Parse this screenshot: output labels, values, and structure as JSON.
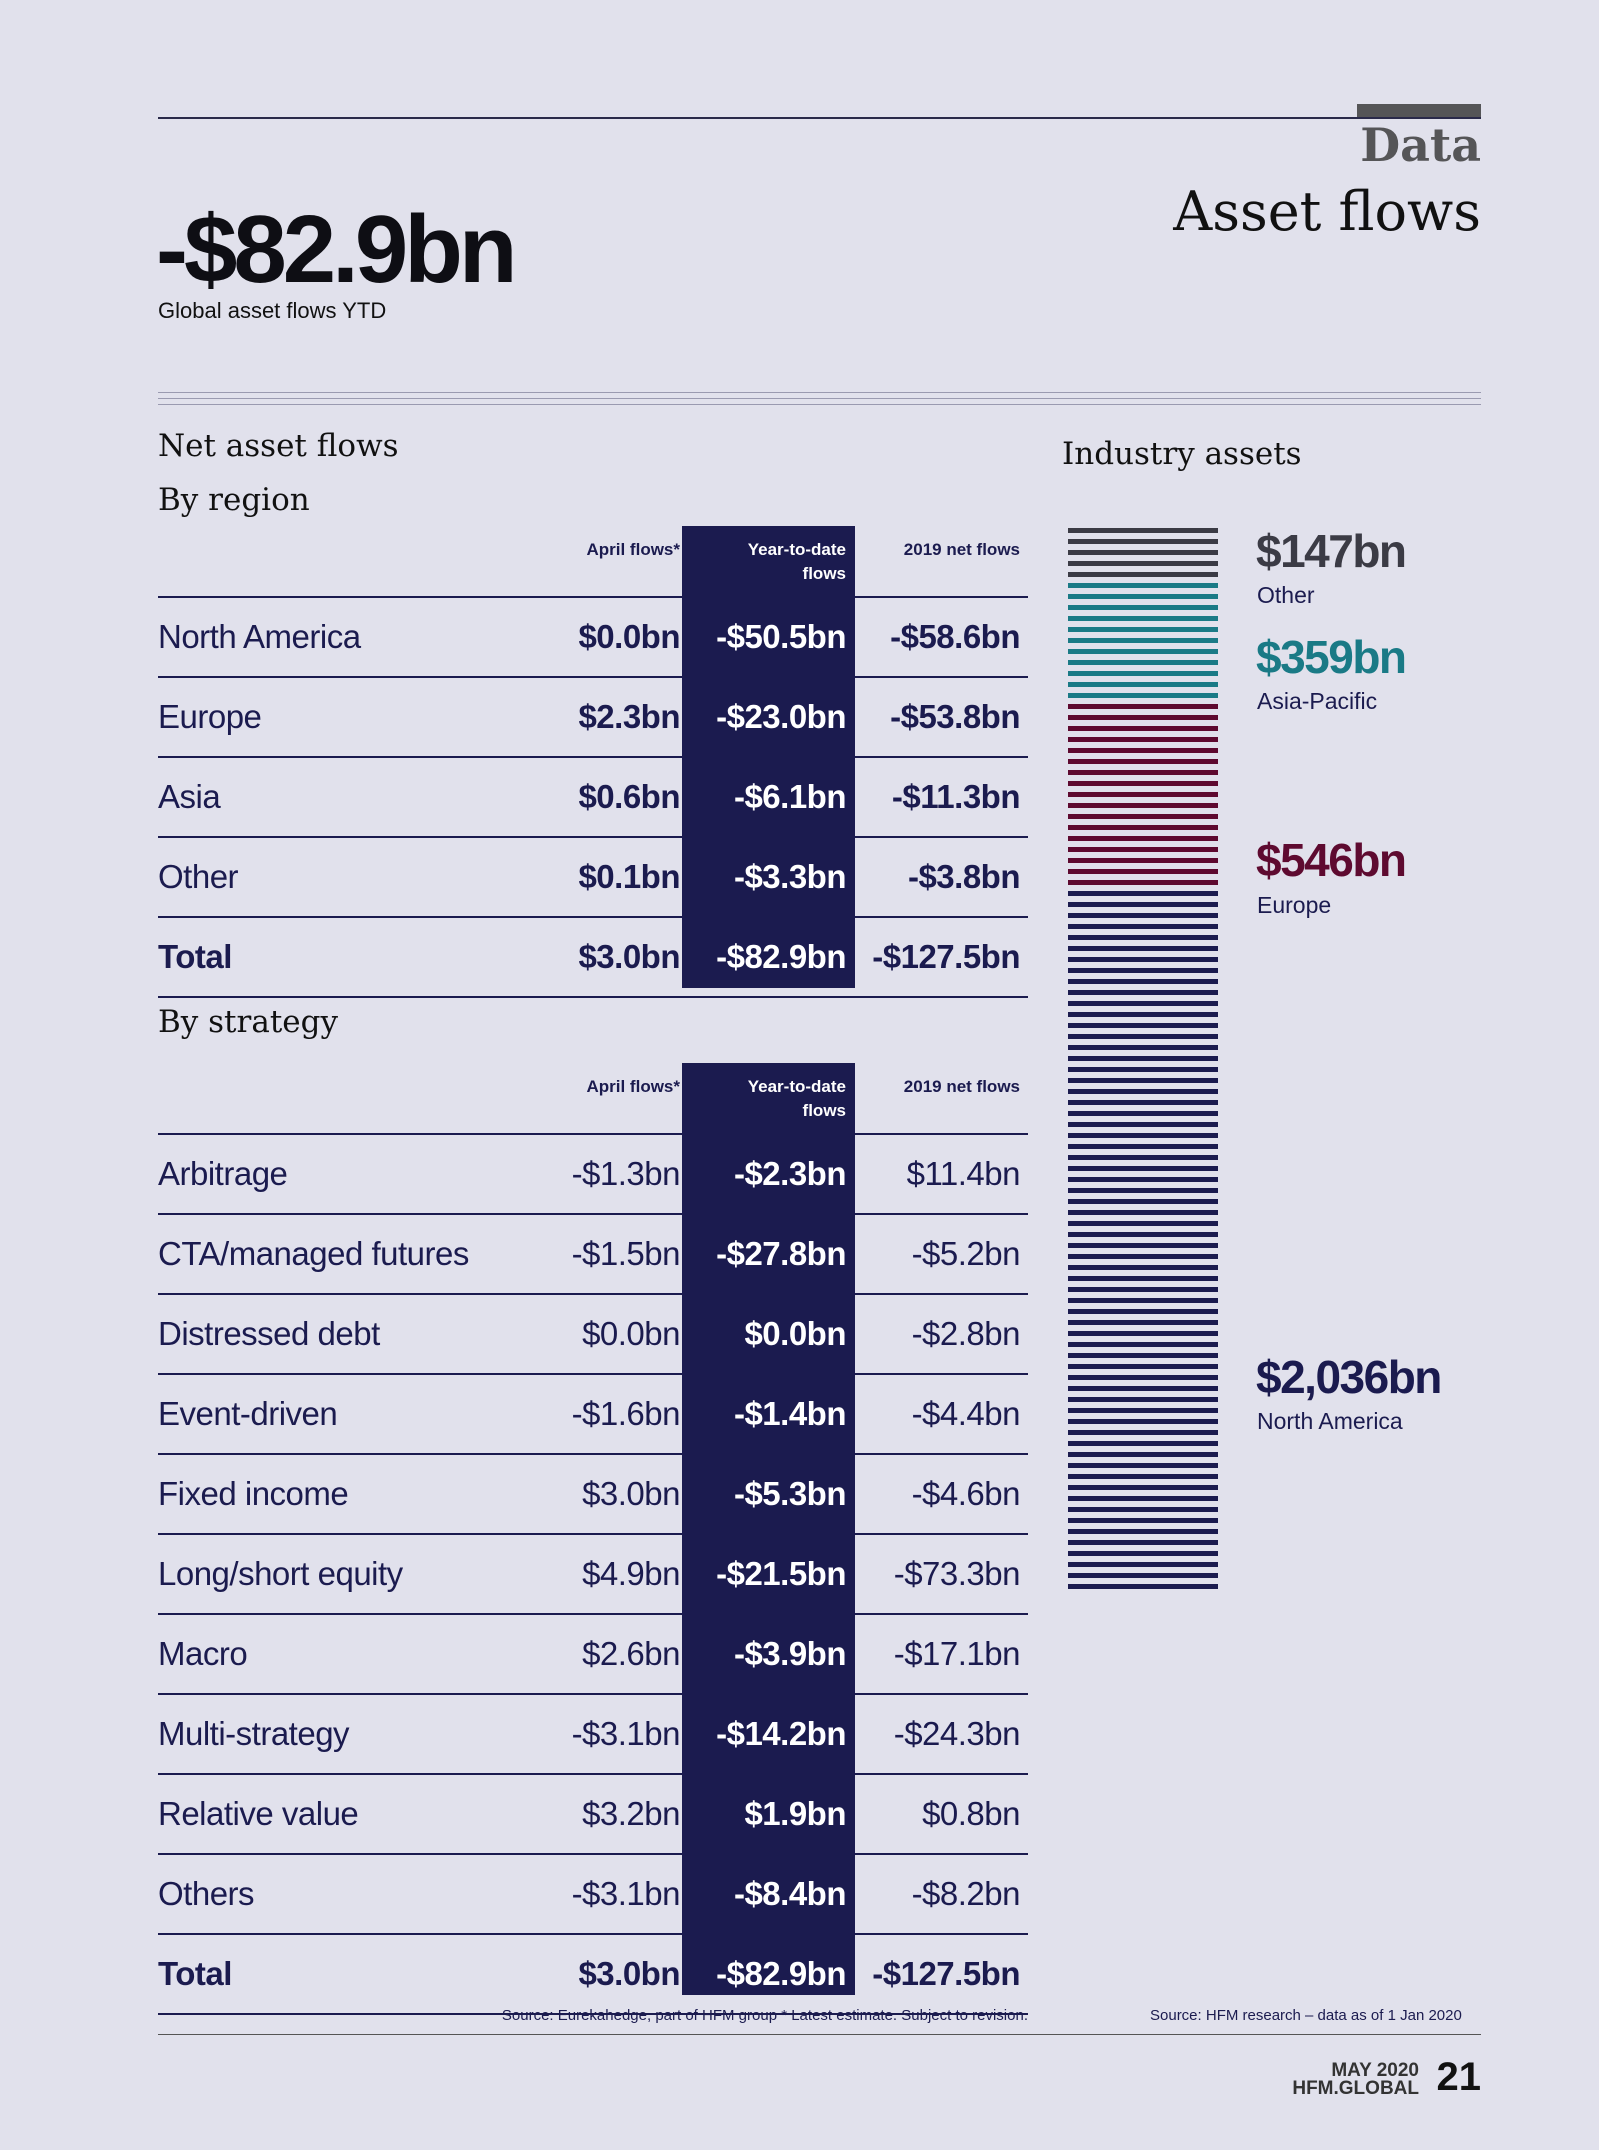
{
  "header": {
    "kicker": "Data",
    "title": "Asset flows"
  },
  "headline": {
    "value": "-$82.9bn",
    "caption": "Global asset flows YTD"
  },
  "section_title": "Net asset flows",
  "columns": {
    "april": "April flows*",
    "ytd": "Year-to-date flows",
    "net2019": "2019 net flows"
  },
  "by_region": {
    "title": "By region",
    "rows": [
      {
        "label": "North America",
        "april": "$0.0bn",
        "ytd": "-$50.5bn",
        "net2019": "-$58.6bn"
      },
      {
        "label": "Europe",
        "april": "$2.3bn",
        "ytd": "-$23.0bn",
        "net2019": "-$53.8bn"
      },
      {
        "label": "Asia",
        "april": "$0.6bn",
        "ytd": "-$6.1bn",
        "net2019": "-$11.3bn"
      },
      {
        "label": "Other",
        "april": "$0.1bn",
        "ytd": "-$3.3bn",
        "net2019": "-$3.8bn"
      },
      {
        "label": "Total",
        "april": "$3.0bn",
        "ytd": "-$82.9bn",
        "net2019": "-$127.5bn"
      }
    ]
  },
  "by_strategy": {
    "title": "By strategy",
    "rows": [
      {
        "label": "Arbitrage",
        "april": "-$1.3bn",
        "ytd": "-$2.3bn",
        "net2019": "$11.4bn"
      },
      {
        "label": "CTA/managed futures",
        "april": "-$1.5bn",
        "ytd": "-$27.8bn",
        "net2019": "-$5.2bn"
      },
      {
        "label": "Distressed debt",
        "april": "$0.0bn",
        "ytd": "$0.0bn",
        "net2019": "-$2.8bn"
      },
      {
        "label": "Event-driven",
        "april": "-$1.6bn",
        "ytd": "-$1.4bn",
        "net2019": "-$4.4bn"
      },
      {
        "label": "Fixed income",
        "april": "$3.0bn",
        "ytd": "-$5.3bn",
        "net2019": "-$4.6bn"
      },
      {
        "label": "Long/short equity",
        "april": "$4.9bn",
        "ytd": "-$21.5bn",
        "net2019": "-$73.3bn"
      },
      {
        "label": "Macro",
        "april": "$2.6bn",
        "ytd": "-$3.9bn",
        "net2019": "-$17.1bn"
      },
      {
        "label": "Multi-strategy",
        "april": "-$3.1bn",
        "ytd": "-$14.2bn",
        "net2019": "-$24.3bn"
      },
      {
        "label": "Relative value",
        "april": "$3.2bn",
        "ytd": "$1.9bn",
        "net2019": "$0.8bn"
      },
      {
        "label": "Others",
        "april": "-$3.1bn",
        "ytd": "-$8.4bn",
        "net2019": "-$8.2bn"
      },
      {
        "label": "Total",
        "april": "$3.0bn",
        "ytd": "-$82.9bn",
        "net2019": "-$127.5bn"
      }
    ]
  },
  "source_left": "Source: Eurekahedge, part of HFM group * Latest estimate. Subject to revision.",
  "industry": {
    "title": "Industry assets",
    "segments": [
      {
        "value": "$147bn",
        "label": "Other",
        "color": "#3b3b45",
        "amount": 147
      },
      {
        "value": "$359bn",
        "label": "Asia-Pacific",
        "color": "#1a7a86",
        "amount": 359
      },
      {
        "value": "$546bn",
        "label": "Europe",
        "color": "#5e0a30",
        "amount": 546
      },
      {
        "value": "$2,036bn",
        "label": "North America",
        "color": "#1b1b4f",
        "amount": 2036
      }
    ],
    "source": "Source: HFM research – data as of 1 Jan 2020"
  },
  "footer": {
    "date": "MAY 2020",
    "site": "HFM.GLOBAL",
    "page": "21"
  }
}
